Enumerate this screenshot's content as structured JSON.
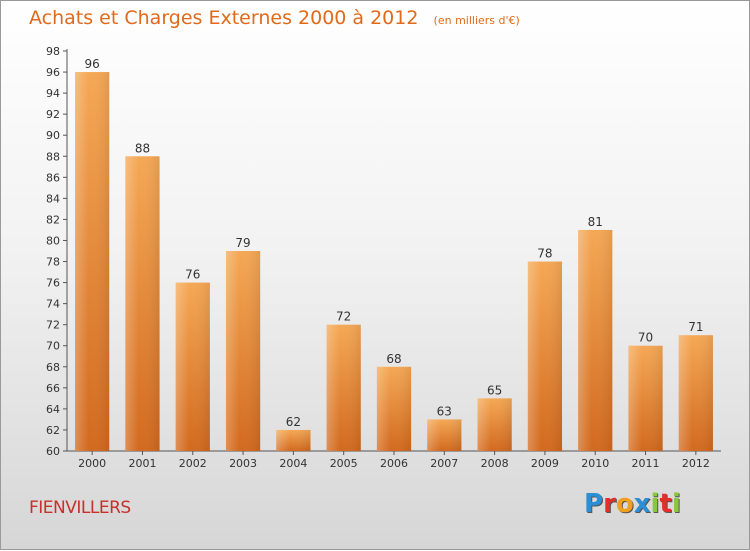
{
  "header": {
    "title": "Achats et Charges Externes 2000 à 2012",
    "subtitle": "(en milliers d'€)"
  },
  "commune": "FIENVILLERS",
  "logo": {
    "text": "Proxiti",
    "letters": [
      {
        "ch": "P",
        "color": "#2a8fd4"
      },
      {
        "ch": "r",
        "color": "#e0302a"
      },
      {
        "ch": "o",
        "color": "#f0a020"
      },
      {
        "ch": "x",
        "color": "#2a8fd4"
      },
      {
        "ch": "i",
        "color": "#8cc63f"
      },
      {
        "ch": "t",
        "color": "#e0302a"
      },
      {
        "ch": "i",
        "color": "#8cc63f"
      }
    ]
  },
  "colors": {
    "accent": "#e06a1a",
    "bar_top": "#f5a855",
    "bar_bottom": "#d2691e",
    "commune": "#c8302a"
  },
  "chart_data": {
    "type": "bar",
    "title": "Achats et Charges Externes 2000 à 2012",
    "subtitle": "(en milliers d'€)",
    "categories": [
      "2000",
      "2001",
      "2002",
      "2003",
      "2004",
      "2005",
      "2006",
      "2007",
      "2008",
      "2009",
      "2010",
      "2011",
      "2012"
    ],
    "values": [
      96,
      88,
      76,
      79,
      62,
      72,
      68,
      63,
      65,
      78,
      81,
      70,
      71
    ],
    "ylim": [
      60,
      98
    ],
    "ytick_step": 2,
    "grid": false,
    "legend": "none"
  }
}
